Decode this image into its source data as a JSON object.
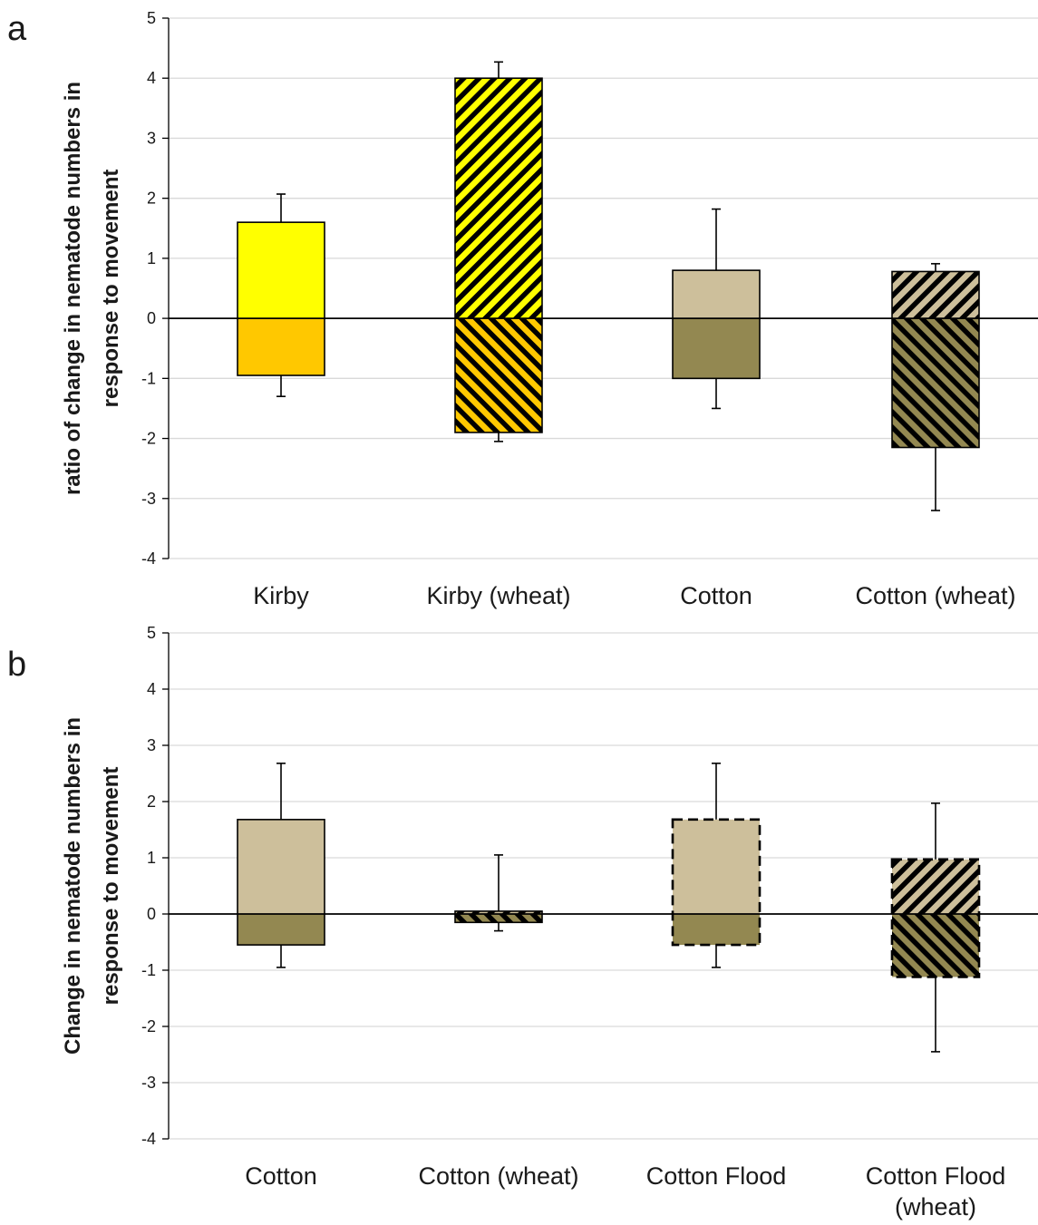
{
  "chart_data": [
    {
      "type": "bar",
      "panel_label": "a",
      "ylabel_lines": [
        "ratio of change in nematode numbers in",
        "response to movement"
      ],
      "ylim": [
        -4,
        5
      ],
      "yticks": [
        "5",
        "4",
        "3",
        "2",
        "1",
        "0",
        "-1",
        "-2",
        "-3",
        "-4"
      ],
      "grid": true,
      "categories": [
        "Kirby",
        "Kirby (wheat)",
        "Cotton",
        "Cotton (wheat)"
      ],
      "category_lines": [
        [
          "Kirby"
        ],
        [
          "Kirby (wheat)"
        ],
        [
          "Cotton"
        ],
        [
          "Cotton (wheat)"
        ]
      ],
      "positive": [
        1.6,
        4.0,
        0.8,
        0.78
      ],
      "negative": [
        -0.95,
        -1.9,
        -1.0,
        -2.15
      ],
      "error_positive": [
        0.47,
        0.27,
        1.02,
        0.13
      ],
      "error_negative": [
        0.35,
        0.15,
        0.5,
        1.05
      ],
      "fill_positive": [
        "#ffff00",
        "#ffff00",
        "#cdbf9b",
        "#cdbf9b"
      ],
      "fill_negative": [
        "#ffc800",
        "#ffc800",
        "#938851",
        "#938851"
      ],
      "hatched": [
        false,
        true,
        false,
        true
      ],
      "dashed_outline": [
        false,
        false,
        false,
        false
      ]
    },
    {
      "type": "bar",
      "panel_label": "b",
      "ylabel_lines": [
        "Change in nematode numbers in",
        "response to movement"
      ],
      "ylim": [
        -4,
        5
      ],
      "yticks": [
        "5",
        "4",
        "3",
        "2",
        "1",
        "0",
        "-1",
        "-2",
        "-3",
        "-4"
      ],
      "grid": true,
      "categories": [
        "Cotton",
        "Cotton (wheat)",
        "Cotton Flood",
        "Cotton Flood (wheat)"
      ],
      "category_lines": [
        [
          "Cotton"
        ],
        [
          "Cotton (wheat)"
        ],
        [
          "Cotton Flood"
        ],
        [
          "Cotton Flood",
          "(wheat)"
        ]
      ],
      "positive": [
        1.68,
        0.05,
        1.68,
        0.97
      ],
      "negative": [
        -0.55,
        -0.15,
        -0.55,
        -1.12
      ],
      "error_positive": [
        1.0,
        1.0,
        1.0,
        1.0
      ],
      "error_negative": [
        0.4,
        0.15,
        0.4,
        1.33
      ],
      "fill_positive": [
        "#cdbf9b",
        "#cdbf9b",
        "#cdbf9b",
        "#cdbf9b"
      ],
      "fill_negative": [
        "#938851",
        "#938851",
        "#938851",
        "#938851"
      ],
      "hatched": [
        false,
        true,
        false,
        true
      ],
      "dashed_outline": [
        false,
        false,
        true,
        true
      ]
    }
  ]
}
